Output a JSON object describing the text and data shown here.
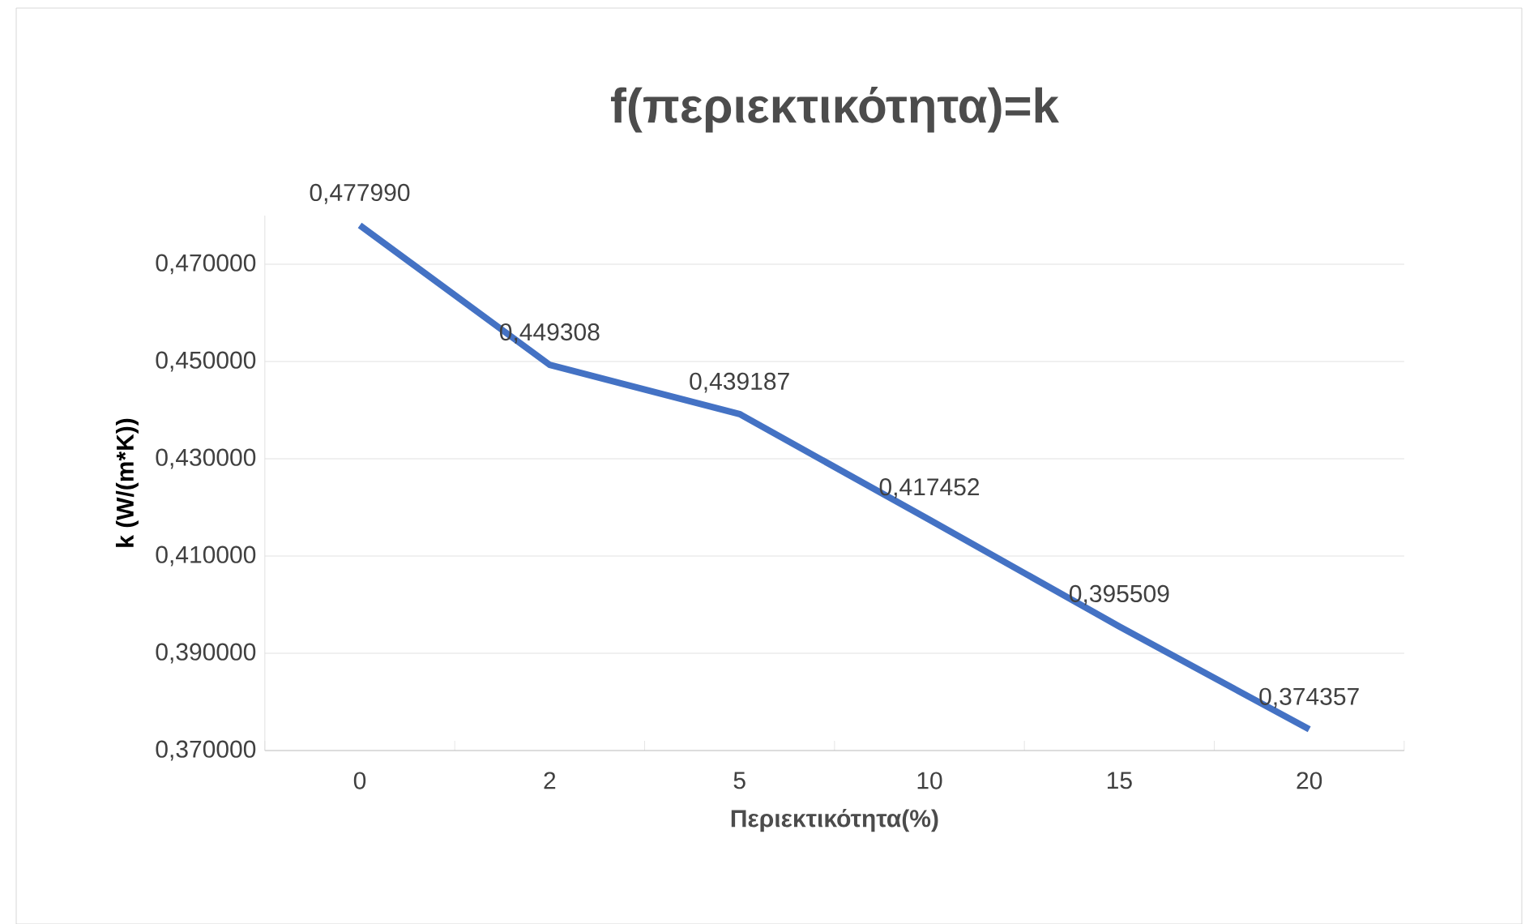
{
  "chart_data": {
    "type": "line",
    "title": "f(περιεκτικότητα)=k",
    "xlabel": "Περιεκτικότητα(%)",
    "ylabel": "k (W/(m*K))",
    "categories": [
      "0",
      "2",
      "5",
      "10",
      "15",
      "20"
    ],
    "series": [
      {
        "color": "#4472c4",
        "values": [
          0.47799,
          0.449308,
          0.439187,
          0.417452,
          0.395509,
          0.374357
        ],
        "value_labels": [
          "0,477990",
          "0,449308",
          "0,439187",
          "0,417452",
          "0,395509",
          "0,374357"
        ]
      }
    ],
    "ylim": [
      0.37,
      0.48
    ],
    "yticks": [
      {
        "value": 0.37,
        "label": "0,370000"
      },
      {
        "value": 0.39,
        "label": "0,390000"
      },
      {
        "value": 0.41,
        "label": "0,410000"
      },
      {
        "value": 0.43,
        "label": "0,430000"
      },
      {
        "value": 0.45,
        "label": "0,450000"
      },
      {
        "value": 0.47,
        "label": "0,470000"
      }
    ],
    "grid": "y",
    "marker": "none",
    "line_style": "solid"
  }
}
